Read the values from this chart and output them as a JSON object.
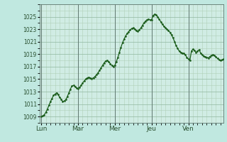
{
  "bg_color": "#c0e8e0",
  "plot_bg_color": "#d0ece4",
  "line_color": "#1a5c1a",
  "marker_color": "#1a5c1a",
  "grid_color_major": "#90b8a0",
  "grid_color_minor": "#b0d0b8",
  "tick_label_color": "#2a5030",
  "ylim": [
    1008,
    1027
  ],
  "yticks": [
    1009,
    1011,
    1013,
    1015,
    1017,
    1019,
    1021,
    1023,
    1025
  ],
  "day_labels": [
    "Lun",
    "Mar",
    "Mer",
    "Jeu",
    "Ven"
  ],
  "day_positions": [
    0,
    24,
    48,
    72,
    96
  ],
  "x_values": [
    0,
    1,
    2,
    3,
    4,
    5,
    6,
    7,
    8,
    9,
    10,
    11,
    12,
    13,
    14,
    15,
    16,
    17,
    18,
    19,
    20,
    21,
    22,
    23,
    24,
    25,
    26,
    27,
    28,
    29,
    30,
    31,
    32,
    33,
    34,
    35,
    36,
    37,
    38,
    39,
    40,
    41,
    42,
    43,
    44,
    45,
    46,
    47,
    48,
    49,
    50,
    51,
    52,
    53,
    54,
    55,
    56,
    57,
    58,
    59,
    60,
    61,
    62,
    63,
    64,
    65,
    66,
    67,
    68,
    69,
    70,
    71,
    72,
    73,
    74,
    75,
    76,
    77,
    78,
    79,
    80,
    81,
    82,
    83,
    84,
    85,
    86,
    87,
    88,
    89,
    90,
    91,
    92,
    93,
    94,
    95,
    96,
    97,
    98,
    99,
    100,
    101,
    102,
    103,
    104,
    105,
    106,
    107,
    108,
    109,
    110,
    111,
    112,
    113,
    114,
    115,
    116,
    117,
    118,
    119
  ],
  "y_values": [
    1009.0,
    1009.1,
    1009.3,
    1009.7,
    1010.2,
    1010.8,
    1011.4,
    1011.9,
    1012.4,
    1012.6,
    1012.8,
    1012.5,
    1012.1,
    1011.8,
    1011.4,
    1011.5,
    1011.7,
    1012.2,
    1012.8,
    1013.4,
    1013.9,
    1014.0,
    1013.8,
    1013.6,
    1013.5,
    1013.7,
    1014.0,
    1014.4,
    1014.7,
    1015.0,
    1015.2,
    1015.3,
    1015.2,
    1015.1,
    1015.2,
    1015.4,
    1015.7,
    1016.0,
    1016.4,
    1016.8,
    1017.2,
    1017.6,
    1017.9,
    1018.0,
    1017.8,
    1017.5,
    1017.2,
    1017.0,
    1017.2,
    1017.8,
    1018.5,
    1019.3,
    1020.1,
    1020.8,
    1021.4,
    1021.9,
    1022.3,
    1022.6,
    1022.9,
    1023.1,
    1023.2,
    1023.0,
    1022.8,
    1022.7,
    1022.9,
    1023.2,
    1023.6,
    1024.0,
    1024.3,
    1024.5,
    1024.6,
    1024.5,
    1024.5,
    1025.2,
    1025.4,
    1025.3,
    1025.0,
    1024.6,
    1024.2,
    1023.8,
    1023.5,
    1023.2,
    1023.0,
    1022.8,
    1022.5,
    1022.1,
    1021.6,
    1021.0,
    1020.4,
    1019.9,
    1019.5,
    1019.3,
    1019.2,
    1019.1,
    1018.9,
    1018.5,
    1018.2,
    1018.0,
    1019.5,
    1019.8,
    1019.6,
    1019.3,
    1019.5,
    1019.7,
    1019.2,
    1018.9,
    1018.7,
    1018.6,
    1018.5,
    1018.4,
    1018.6,
    1018.8,
    1018.9,
    1018.8,
    1018.6,
    1018.3,
    1018.1,
    1018.0,
    1018.1,
    1018.2
  ]
}
